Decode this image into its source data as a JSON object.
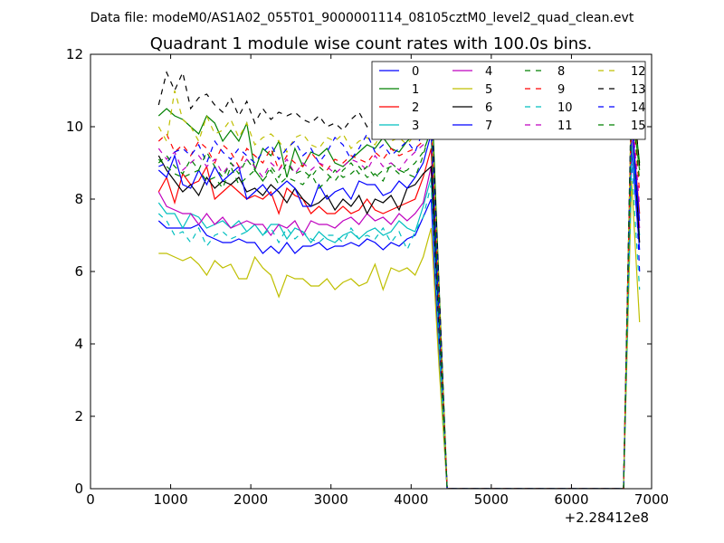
{
  "figure": {
    "suptitle": "Data file: modeM0/AS1A02_055T01_9000001114_08105cztM0_level2_quad_clean.evt",
    "title": "Quadrant 1 module wise count rates with 100.0s bins.",
    "x_offset_label": "+2.28412e8"
  },
  "chart_data": {
    "type": "line",
    "title": "Quadrant 1 module wise count rates with 100.0s bins.",
    "xlabel": "",
    "ylabel": "",
    "xlim": [
      0,
      7000
    ],
    "ylim": [
      0,
      12
    ],
    "x_ticks": [
      0,
      1000,
      2000,
      3000,
      4000,
      5000,
      6000,
      7000
    ],
    "y_ticks": [
      0,
      2,
      4,
      6,
      8,
      10,
      12
    ],
    "grid": false,
    "legend": "top-right",
    "x": [
      850,
      950,
      1050,
      1150,
      1250,
      1350,
      1450,
      1550,
      1650,
      1750,
      1850,
      1950,
      2050,
      2150,
      2250,
      2350,
      2450,
      2550,
      2650,
      2750,
      2850,
      2950,
      3050,
      3150,
      3250,
      3350,
      3450,
      3550,
      3650,
      3750,
      3850,
      3950,
      4050,
      4150,
      4250,
      4350,
      4450,
      4550,
      4650,
      4750,
      4850,
      4950,
      5050,
      5150,
      5250,
      5350,
      5450,
      5550,
      5650,
      5750,
      5850,
      5950,
      6050,
      6150,
      6250,
      6350,
      6450,
      6550,
      6650,
      6750,
      6850
    ],
    "series": [
      {
        "name": "0",
        "color": "#0000ff",
        "dash": "solid",
        "values": [
          7.4,
          7.2,
          7.2,
          7.2,
          7.2,
          7.3,
          7.0,
          6.9,
          6.8,
          6.8,
          6.9,
          6.8,
          6.8,
          6.5,
          6.7,
          6.5,
          6.8,
          6.5,
          6.7,
          6.7,
          6.8,
          6.6,
          6.7,
          6.7,
          6.8,
          6.7,
          6.9,
          6.8,
          6.6,
          6.8,
          6.7,
          6.9,
          7.0,
          7.5,
          8.0,
          3.5,
          0,
          0,
          0,
          0,
          0,
          0,
          0,
          0,
          0,
          0,
          0,
          0,
          0,
          0,
          0,
          0,
          0,
          0,
          0,
          0,
          0,
          0,
          0,
          9.4,
          6.6
        ]
      },
      {
        "name": "1",
        "color": "#008000",
        "dash": "solid",
        "values": [
          10.3,
          10.5,
          10.3,
          10.2,
          10.0,
          9.8,
          10.3,
          10.1,
          9.6,
          9.9,
          9.6,
          10.1,
          8.8,
          9.4,
          9.2,
          9.6,
          8.6,
          9.4,
          8.9,
          9.3,
          9.2,
          9.4,
          9.0,
          8.9,
          9.1,
          9.3,
          9.5,
          9.4,
          9.7,
          9.4,
          9.3,
          9.6,
          9.8,
          10.5,
          11.3,
          5.5,
          0,
          0,
          0,
          0,
          0,
          0,
          0,
          0,
          0,
          0,
          0,
          0,
          0,
          0,
          0,
          0,
          0,
          0,
          0,
          0,
          0,
          0,
          0,
          11.0,
          9.0
        ]
      },
      {
        "name": "2",
        "color": "#ff0000",
        "dash": "solid",
        "values": [
          8.2,
          8.6,
          7.9,
          8.7,
          8.4,
          8.5,
          8.9,
          8.0,
          8.2,
          8.4,
          8.2,
          8.0,
          8.1,
          8.0,
          8.2,
          7.6,
          8.3,
          8.1,
          8.0,
          7.6,
          7.8,
          7.6,
          7.6,
          7.8,
          7.6,
          7.7,
          8.0,
          7.7,
          7.6,
          7.7,
          7.8,
          7.9,
          8.0,
          8.6,
          9.4,
          4.5,
          0,
          0,
          0,
          0,
          0,
          0,
          0,
          0,
          0,
          0,
          0,
          0,
          0,
          0,
          0,
          0,
          0,
          0,
          0,
          0,
          0,
          0,
          0,
          10.2,
          7.6
        ]
      },
      {
        "name": "3",
        "color": "#00bfbf",
        "dash": "solid",
        "values": [
          7.9,
          7.6,
          7.6,
          7.2,
          7.6,
          7.5,
          7.2,
          7.3,
          7.4,
          7.2,
          7.4,
          7.1,
          7.3,
          7.0,
          7.3,
          7.3,
          6.9,
          7.2,
          7.1,
          6.8,
          7.1,
          6.9,
          6.8,
          7.0,
          7.1,
          6.9,
          7.1,
          7.2,
          7.0,
          7.1,
          7.4,
          7.2,
          7.1,
          7.8,
          8.6,
          4.0,
          0,
          0,
          0,
          0,
          0,
          0,
          0,
          0,
          0,
          0,
          0,
          0,
          0,
          0,
          0,
          0,
          0,
          0,
          0,
          0,
          0,
          0,
          0,
          9.6,
          7.0
        ]
      },
      {
        "name": "4",
        "color": "#bf00bf",
        "dash": "solid",
        "values": [
          8.2,
          7.8,
          7.7,
          7.6,
          7.6,
          7.3,
          7.6,
          7.3,
          7.5,
          7.2,
          7.3,
          7.4,
          7.3,
          7.3,
          7.0,
          7.3,
          7.2,
          7.4,
          7.0,
          7.4,
          7.3,
          7.3,
          7.2,
          7.4,
          7.5,
          7.3,
          7.6,
          7.4,
          7.5,
          7.3,
          7.6,
          7.4,
          7.6,
          7.9,
          8.9,
          4.2,
          0,
          0,
          0,
          0,
          0,
          0,
          0,
          0,
          0,
          0,
          0,
          0,
          0,
          0,
          0,
          0,
          0,
          0,
          0,
          0,
          0,
          0,
          0,
          10.0,
          7.2
        ]
      },
      {
        "name": "5",
        "color": "#bfbf00",
        "dash": "solid",
        "values": [
          6.5,
          6.5,
          6.4,
          6.3,
          6.4,
          6.2,
          5.9,
          6.3,
          6.1,
          6.2,
          5.8,
          5.8,
          6.4,
          6.1,
          5.9,
          5.3,
          5.9,
          5.8,
          5.8,
          5.6,
          5.6,
          5.8,
          5.5,
          5.7,
          5.8,
          5.6,
          5.7,
          6.2,
          5.5,
          6.1,
          6.0,
          6.1,
          5.9,
          6.4,
          7.2,
          3.3,
          0,
          0,
          0,
          0,
          0,
          0,
          0,
          0,
          0,
          0,
          0,
          0,
          0,
          0,
          0,
          0,
          0,
          0,
          0,
          0,
          0,
          0,
          0,
          8.5,
          4.6
        ]
      },
      {
        "name": "6",
        "color": "#000000",
        "dash": "solid",
        "values": [
          9.2,
          8.8,
          8.5,
          8.2,
          8.4,
          8.1,
          8.6,
          8.3,
          8.5,
          8.4,
          8.6,
          8.2,
          8.3,
          8.1,
          8.4,
          8.2,
          7.9,
          8.3,
          8.0,
          7.8,
          7.9,
          8.1,
          7.7,
          8.0,
          7.8,
          8.1,
          7.6,
          8.0,
          7.9,
          8.1,
          7.7,
          8.3,
          8.4,
          8.7,
          8.9,
          4.3,
          0,
          0,
          0,
          0,
          0,
          0,
          0,
          0,
          0,
          0,
          0,
          0,
          0,
          0,
          0,
          0,
          0,
          0,
          0,
          0,
          0,
          0,
          0,
          10.4,
          6.8
        ]
      },
      {
        "name": "7",
        "color": "#0000ff",
        "dash": "solid",
        "values": [
          8.8,
          8.6,
          9.2,
          8.4,
          8.3,
          8.8,
          8.4,
          8.9,
          8.5,
          8.7,
          8.9,
          8.0,
          8.2,
          8.4,
          8.1,
          8.3,
          8.5,
          8.3,
          7.8,
          7.8,
          8.4,
          8.0,
          8.2,
          8.3,
          8.0,
          8.5,
          8.4,
          8.4,
          8.1,
          8.2,
          8.5,
          8.3,
          8.6,
          9.0,
          9.8,
          4.6,
          0,
          0,
          0,
          0,
          0,
          0,
          0,
          0,
          0,
          0,
          0,
          0,
          0,
          0,
          0,
          0,
          0,
          0,
          0,
          0,
          0,
          0,
          0,
          10.2,
          7.4
        ]
      },
      {
        "name": "8",
        "color": "#008000",
        "dash": "dash",
        "values": [
          9.1,
          8.9,
          8.7,
          8.6,
          8.7,
          8.8,
          8.5,
          8.6,
          8.3,
          8.9,
          8.4,
          8.6,
          8.8,
          8.5,
          8.8,
          8.4,
          8.6,
          8.5,
          8.4,
          8.7,
          8.3,
          8.5,
          8.8,
          8.6,
          8.7,
          8.9,
          8.6,
          8.7,
          8.5,
          9.0,
          8.8,
          8.7,
          8.6,
          9.2,
          10.0,
          4.8,
          0,
          0,
          0,
          0,
          0,
          0,
          0,
          0,
          0,
          0,
          0,
          0,
          0,
          0,
          0,
          0,
          0,
          0,
          0,
          0,
          0,
          0,
          0,
          10.6,
          8.8
        ]
      },
      {
        "name": "9",
        "color": "#ff0000",
        "dash": "dash",
        "values": [
          9.6,
          9.8,
          9.3,
          9.5,
          9.2,
          9.6,
          9.4,
          9.0,
          9.5,
          9.3,
          8.9,
          9.4,
          9.2,
          9.0,
          9.4,
          8.8,
          9.2,
          9.0,
          8.9,
          9.3,
          9.0,
          8.8,
          9.1,
          9.0,
          9.2,
          9.1,
          9.0,
          9.3,
          9.1,
          9.4,
          9.2,
          9.3,
          9.4,
          9.6,
          10.2,
          5.0,
          0,
          0,
          0,
          0,
          0,
          0,
          0,
          0,
          0,
          0,
          0,
          0,
          0,
          0,
          0,
          0,
          0,
          0,
          0,
          0,
          0,
          0,
          0,
          10.8,
          8.2
        ]
      },
      {
        "name": "10",
        "color": "#00bfbf",
        "dash": "dash",
        "values": [
          7.6,
          7.4,
          7.0,
          7.1,
          6.8,
          7.2,
          6.7,
          7.0,
          7.1,
          6.9,
          7.0,
          7.1,
          7.3,
          7.0,
          7.2,
          6.8,
          7.2,
          6.9,
          7.1,
          6.9,
          6.8,
          7.0,
          7.0,
          6.8,
          7.2,
          6.9,
          7.0,
          6.9,
          7.2,
          6.8,
          7.1,
          6.6,
          7.1,
          7.5,
          8.4,
          4.0,
          0,
          0,
          0,
          0,
          0,
          0,
          0,
          0,
          0,
          0,
          0,
          0,
          0,
          0,
          0,
          0,
          0,
          0,
          0,
          0,
          0,
          0,
          0,
          9.0,
          5.5
        ]
      },
      {
        "name": "11",
        "color": "#bf00bf",
        "dash": "dash",
        "values": [
          9.4,
          9.1,
          9.3,
          8.8,
          9.0,
          9.2,
          8.9,
          9.1,
          8.7,
          9.0,
          8.8,
          9.1,
          8.9,
          8.6,
          9.0,
          8.8,
          9.1,
          8.7,
          9.0,
          8.8,
          9.0,
          8.9,
          8.7,
          8.9,
          9.1,
          9.0,
          8.8,
          9.2,
          8.9,
          9.0,
          8.8,
          9.1,
          9.3,
          9.5,
          10.0,
          4.9,
          0,
          0,
          0,
          0,
          0,
          0,
          0,
          0,
          0,
          0,
          0,
          0,
          0,
          0,
          0,
          0,
          0,
          0,
          0,
          0,
          0,
          0,
          0,
          10.5,
          7.8
        ]
      },
      {
        "name": "12",
        "color": "#bfbf00",
        "dash": "dash",
        "values": [
          10.0,
          9.6,
          11.0,
          10.2,
          10.0,
          9.6,
          10.3,
          9.8,
          9.9,
          10.2,
          9.7,
          10.1,
          9.5,
          9.7,
          9.8,
          9.6,
          9.3,
          9.7,
          9.8,
          9.5,
          9.4,
          9.7,
          9.6,
          9.8,
          9.4,
          9.6,
          9.7,
          9.5,
          9.9,
          9.6,
          9.7,
          9.5,
          9.8,
          10.2,
          10.6,
          5.3,
          0,
          0,
          0,
          0,
          0,
          0,
          0,
          0,
          0,
          0,
          0,
          0,
          0,
          0,
          0,
          0,
          0,
          0,
          0,
          0,
          0,
          0,
          0,
          11.2,
          8.5
        ]
      },
      {
        "name": "13",
        "color": "#000000",
        "dash": "dash",
        "values": [
          10.6,
          11.5,
          11.0,
          11.5,
          10.5,
          10.8,
          10.9,
          10.6,
          10.4,
          10.8,
          10.3,
          10.7,
          10.1,
          10.5,
          10.2,
          10.4,
          10.3,
          10.4,
          10.2,
          10.1,
          10.3,
          10.0,
          10.1,
          9.9,
          10.2,
          10.4,
          10.0,
          10.2,
          10.3,
          10.1,
          10.0,
          10.2,
          10.4,
          10.6,
          10.9,
          5.5,
          0,
          0,
          0,
          0,
          0,
          0,
          0,
          0,
          0,
          0,
          0,
          0,
          0,
          0,
          0,
          0,
          0,
          0,
          0,
          0,
          0,
          0,
          0,
          11.3,
          8.9
        ]
      },
      {
        "name": "14",
        "color": "#0000ff",
        "dash": "dash",
        "values": [
          8.9,
          9.0,
          9.3,
          9.4,
          9.2,
          9.5,
          9.0,
          9.6,
          9.3,
          9.1,
          9.4,
          9.2,
          9.0,
          9.3,
          9.5,
          9.1,
          9.4,
          9.6,
          9.2,
          9.4,
          9.0,
          9.3,
          9.7,
          9.5,
          9.1,
          9.4,
          9.8,
          9.3,
          9.5,
          9.2,
          9.4,
          9.6,
          9.3,
          9.9,
          10.4,
          5.1,
          0,
          0,
          0,
          0,
          0,
          0,
          0,
          0,
          0,
          0,
          0,
          0,
          0,
          0,
          0,
          0,
          0,
          0,
          0,
          0,
          0,
          0,
          0,
          10.9,
          6.0
        ]
      },
      {
        "name": "15",
        "color": "#008000",
        "dash": "dash",
        "values": [
          9.0,
          9.2,
          8.9,
          8.7,
          9.1,
          8.8,
          9.3,
          8.9,
          8.6,
          9.0,
          8.7,
          9.1,
          8.8,
          8.5,
          8.9,
          8.6,
          9.0,
          8.7,
          8.8,
          8.6,
          8.9,
          8.7,
          8.5,
          8.8,
          9.0,
          8.7,
          8.9,
          8.6,
          8.8,
          8.9,
          8.7,
          8.8,
          9.0,
          9.3,
          9.9,
          4.8,
          0,
          0,
          0,
          0,
          0,
          0,
          0,
          0,
          0,
          0,
          0,
          0,
          0,
          0,
          0,
          0,
          0,
          0,
          0,
          0,
          0,
          0,
          0,
          10.7,
          8.5
        ]
      }
    ]
  }
}
